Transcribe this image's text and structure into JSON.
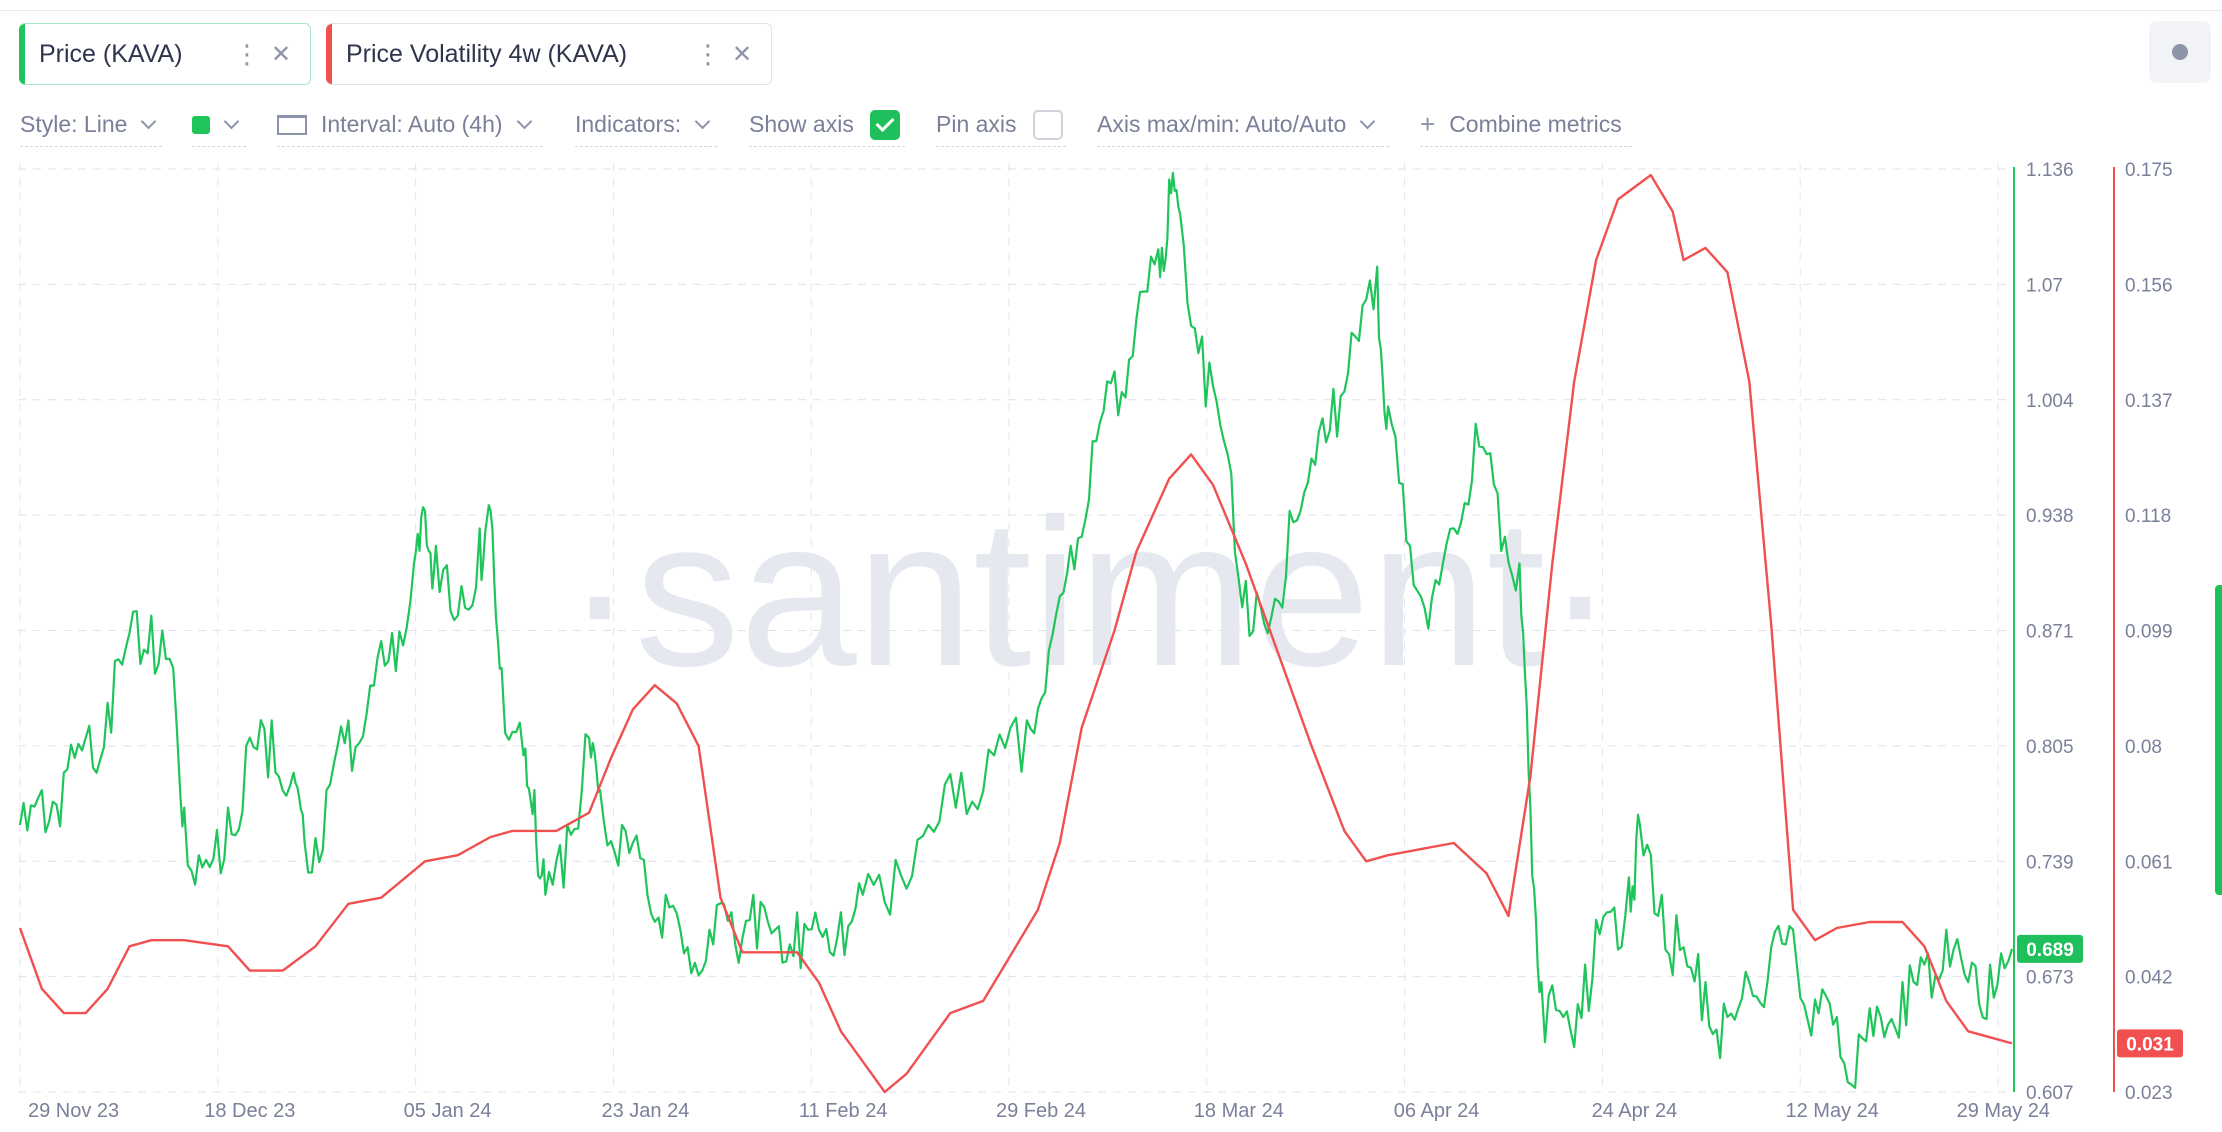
{
  "metrics": [
    {
      "label": "Price (KAVA)",
      "color": "#1fc45a",
      "menu_icon": "kebab-menu-icon",
      "close_icon": "close-icon"
    },
    {
      "label": "Price Volatility 4w (KAVA)",
      "color": "#f0504f",
      "menu_icon": "kebab-menu-icon",
      "close_icon": "close-icon"
    }
  ],
  "toolbar": {
    "style": "Style: Line",
    "interval": "Interval: Auto (4h)",
    "indicators": "Indicators:",
    "show_axis": "Show axis",
    "show_axis_checked": true,
    "pin_axis": "Pin axis",
    "pin_axis_checked": false,
    "axis_maxmin": "Axis max/min: Auto/Auto",
    "combine": "Combine metrics"
  },
  "watermark": "·santiment·",
  "chart_data": {
    "type": "line",
    "x_labels": [
      "29 Nov 23",
      "18 Dec 23",
      "05 Jan 24",
      "23 Jan 24",
      "11 Feb 24",
      "29 Feb 24",
      "18 Mar 24",
      "06 Apr 24",
      "24 Apr 24",
      "12 May 24",
      "29 May 24"
    ],
    "x_range": [
      "2023-11-29",
      "2024-05-29"
    ],
    "y_left_ticks": [
      "1.136",
      "1.07",
      "1.004",
      "0.938",
      "0.871",
      "0.805",
      "0.739",
      "0.673",
      "0.607"
    ],
    "y_left_range": [
      0.607,
      1.136
    ],
    "y_right_ticks": [
      "0.175",
      "0.156",
      "0.137",
      "0.118",
      "0.099",
      "0.08",
      "0.061",
      "0.042",
      "0.023"
    ],
    "y_right_range": [
      0.023,
      0.175
    ],
    "current_values": {
      "price": "0.689",
      "volatility": "0.031"
    },
    "grid": true,
    "series": [
      {
        "name": "Price (KAVA)",
        "axis": "left",
        "color": "#1fc45a",
        "points": [
          [
            "2023-11-29",
            0.76
          ],
          [
            "2023-12-01",
            0.78
          ],
          [
            "2023-12-03",
            0.79
          ],
          [
            "2023-12-05",
            0.81
          ],
          [
            "2023-12-07",
            0.83
          ],
          [
            "2023-12-09",
            0.87
          ],
          [
            "2023-12-11",
            0.88
          ],
          [
            "2023-12-13",
            0.85
          ],
          [
            "2023-12-14",
            0.77
          ],
          [
            "2023-12-16",
            0.74
          ],
          [
            "2023-12-18",
            0.77
          ],
          [
            "2023-12-20",
            0.81
          ],
          [
            "2023-12-22",
            0.82
          ],
          [
            "2023-12-24",
            0.79
          ],
          [
            "2023-12-25",
            0.75
          ],
          [
            "2023-12-27",
            0.78
          ],
          [
            "2023-12-29",
            0.82
          ],
          [
            "2023-12-31",
            0.84
          ],
          [
            "2024-01-02",
            0.87
          ],
          [
            "2024-01-04",
            0.91
          ],
          [
            "2024-01-05",
            0.94
          ],
          [
            "2024-01-06",
            0.92
          ],
          [
            "2024-01-08",
            0.88
          ],
          [
            "2024-01-10",
            0.93
          ],
          [
            "2024-01-11",
            0.94
          ],
          [
            "2024-01-12",
            0.85
          ],
          [
            "2024-01-14",
            0.8
          ],
          [
            "2024-01-15",
            0.78
          ],
          [
            "2024-01-16",
            0.72
          ],
          [
            "2024-01-18",
            0.76
          ],
          [
            "2024-01-20",
            0.81
          ],
          [
            "2024-01-21",
            0.78
          ],
          [
            "2024-01-23",
            0.76
          ],
          [
            "2024-01-25",
            0.74
          ],
          [
            "2024-01-27",
            0.72
          ],
          [
            "2024-01-29",
            0.69
          ],
          [
            "2024-01-31",
            0.7
          ],
          [
            "2024-02-02",
            0.71
          ],
          [
            "2024-02-04",
            0.72
          ],
          [
            "2024-02-06",
            0.7
          ],
          [
            "2024-02-08",
            0.71
          ],
          [
            "2024-02-10",
            0.7
          ],
          [
            "2024-02-12",
            0.71
          ],
          [
            "2024-02-14",
            0.72
          ],
          [
            "2024-02-17",
            0.74
          ],
          [
            "2024-02-20",
            0.76
          ],
          [
            "2024-02-23",
            0.79
          ],
          [
            "2024-02-26",
            0.8
          ],
          [
            "2024-02-29",
            0.82
          ],
          [
            "2024-03-02",
            0.86
          ],
          [
            "2024-03-04",
            0.92
          ],
          [
            "2024-03-06",
            0.98
          ],
          [
            "2024-03-08",
            1.02
          ],
          [
            "2024-03-10",
            1.05
          ],
          [
            "2024-03-12",
            1.09
          ],
          [
            "2024-03-13",
            1.13
          ],
          [
            "2024-03-14",
            1.11
          ],
          [
            "2024-03-16",
            1.04
          ],
          [
            "2024-03-18",
            0.98
          ],
          [
            "2024-03-20",
            0.9
          ],
          [
            "2024-03-22",
            0.87
          ],
          [
            "2024-03-24",
            0.94
          ],
          [
            "2024-03-26",
            0.97
          ],
          [
            "2024-03-28",
            1.01
          ],
          [
            "2024-03-30",
            1.04
          ],
          [
            "2024-04-01",
            1.08
          ],
          [
            "2024-04-02",
            1.0
          ],
          [
            "2024-04-04",
            0.92
          ],
          [
            "2024-04-06",
            0.89
          ],
          [
            "2024-04-08",
            0.93
          ],
          [
            "2024-04-10",
            0.99
          ],
          [
            "2024-04-12",
            0.95
          ],
          [
            "2024-04-14",
            0.91
          ],
          [
            "2024-04-15",
            0.77
          ],
          [
            "2024-04-16",
            0.67
          ],
          [
            "2024-04-18",
            0.65
          ],
          [
            "2024-04-20",
            0.68
          ],
          [
            "2024-04-22",
            0.71
          ],
          [
            "2024-04-24",
            0.73
          ],
          [
            "2024-04-25",
            0.76
          ],
          [
            "2024-04-27",
            0.72
          ],
          [
            "2024-04-29",
            0.69
          ],
          [
            "2024-05-01",
            0.67
          ],
          [
            "2024-05-03",
            0.65
          ],
          [
            "2024-05-05",
            0.67
          ],
          [
            "2024-05-07",
            0.69
          ],
          [
            "2024-05-09",
            0.7
          ],
          [
            "2024-05-11",
            0.66
          ],
          [
            "2024-05-13",
            0.65
          ],
          [
            "2024-05-15",
            0.64
          ],
          [
            "2024-05-17",
            0.65
          ],
          [
            "2024-05-19",
            0.67
          ],
          [
            "2024-05-21",
            0.68
          ],
          [
            "2024-05-23",
            0.7
          ],
          [
            "2024-05-25",
            0.67
          ],
          [
            "2024-05-27",
            0.68
          ],
          [
            "2024-05-29",
            0.689
          ]
        ]
      },
      {
        "name": "Price Volatility 4w (KAVA)",
        "axis": "right",
        "color": "#f0504f",
        "points": [
          [
            "2023-11-29",
            0.05
          ],
          [
            "2023-12-01",
            0.04
          ],
          [
            "2023-12-03",
            0.036
          ],
          [
            "2023-12-05",
            0.036
          ],
          [
            "2023-12-07",
            0.04
          ],
          [
            "2023-12-09",
            0.047
          ],
          [
            "2023-12-11",
            0.048
          ],
          [
            "2023-12-14",
            0.048
          ],
          [
            "2023-12-18",
            0.047
          ],
          [
            "2023-12-20",
            0.043
          ],
          [
            "2023-12-23",
            0.043
          ],
          [
            "2023-12-26",
            0.047
          ],
          [
            "2023-12-29",
            0.054
          ],
          [
            "2024-01-01",
            0.055
          ],
          [
            "2024-01-05",
            0.061
          ],
          [
            "2024-01-08",
            0.062
          ],
          [
            "2024-01-11",
            0.065
          ],
          [
            "2024-01-13",
            0.066
          ],
          [
            "2024-01-17",
            0.066
          ],
          [
            "2024-01-20",
            0.069
          ],
          [
            "2024-01-22",
            0.078
          ],
          [
            "2024-01-24",
            0.086
          ],
          [
            "2024-01-26",
            0.09
          ],
          [
            "2024-01-28",
            0.087
          ],
          [
            "2024-01-30",
            0.08
          ],
          [
            "2024-02-01",
            0.055
          ],
          [
            "2024-02-03",
            0.046
          ],
          [
            "2024-02-06",
            0.046
          ],
          [
            "2024-02-08",
            0.046
          ],
          [
            "2024-02-10",
            0.041
          ],
          [
            "2024-02-12",
            0.033
          ],
          [
            "2024-02-14",
            0.028
          ],
          [
            "2024-02-16",
            0.023
          ],
          [
            "2024-02-18",
            0.026
          ],
          [
            "2024-02-20",
            0.031
          ],
          [
            "2024-02-22",
            0.036
          ],
          [
            "2024-02-25",
            0.038
          ],
          [
            "2024-02-27",
            0.044
          ],
          [
            "2024-03-01",
            0.053
          ],
          [
            "2024-03-03",
            0.064
          ],
          [
            "2024-03-05",
            0.083
          ],
          [
            "2024-03-08",
            0.099
          ],
          [
            "2024-03-10",
            0.112
          ],
          [
            "2024-03-13",
            0.124
          ],
          [
            "2024-03-15",
            0.128
          ],
          [
            "2024-03-17",
            0.123
          ],
          [
            "2024-03-20",
            0.11
          ],
          [
            "2024-03-23",
            0.095
          ],
          [
            "2024-03-26",
            0.08
          ],
          [
            "2024-03-29",
            0.066
          ],
          [
            "2024-03-31",
            0.061
          ],
          [
            "2024-04-02",
            0.062
          ],
          [
            "2024-04-05",
            0.063
          ],
          [
            "2024-04-08",
            0.064
          ],
          [
            "2024-04-11",
            0.059
          ],
          [
            "2024-04-13",
            0.052
          ],
          [
            "2024-04-15",
            0.075
          ],
          [
            "2024-04-17",
            0.11
          ],
          [
            "2024-04-19",
            0.14
          ],
          [
            "2024-04-21",
            0.16
          ],
          [
            "2024-04-23",
            0.17
          ],
          [
            "2024-04-26",
            0.174
          ],
          [
            "2024-04-28",
            0.168
          ],
          [
            "2024-04-29",
            0.16
          ],
          [
            "2024-05-01",
            0.162
          ],
          [
            "2024-05-03",
            0.158
          ],
          [
            "2024-05-05",
            0.14
          ],
          [
            "2024-05-07",
            0.1
          ],
          [
            "2024-05-09",
            0.053
          ],
          [
            "2024-05-11",
            0.048
          ],
          [
            "2024-05-13",
            0.05
          ],
          [
            "2024-05-16",
            0.051
          ],
          [
            "2024-05-19",
            0.051
          ],
          [
            "2024-05-21",
            0.047
          ],
          [
            "2024-05-23",
            0.038
          ],
          [
            "2024-05-25",
            0.033
          ],
          [
            "2024-05-27",
            0.032
          ],
          [
            "2024-05-29",
            0.031
          ]
        ]
      }
    ]
  }
}
